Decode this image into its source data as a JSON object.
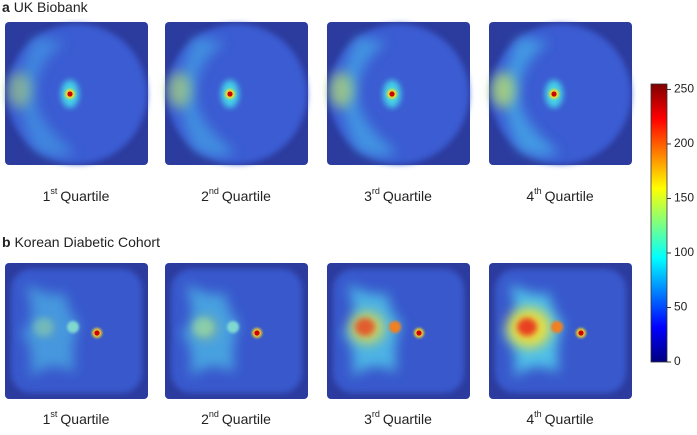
{
  "panels": [
    {
      "letter": "a",
      "title": "UK Biobank",
      "labels": [
        {
          "num": "1",
          "sup": "st",
          "text": "Quartile"
        },
        {
          "num": "2",
          "sup": "nd",
          "text": "Quartile"
        },
        {
          "num": "3",
          "sup": "rd",
          "text": "Quartile"
        },
        {
          "num": "4",
          "sup": "th",
          "text": "Quartile"
        }
      ]
    },
    {
      "letter": "b",
      "title": "Korean Diabetic Cohort",
      "labels": [
        {
          "num": "1",
          "sup": "st",
          "text": "Quartile"
        },
        {
          "num": "2",
          "sup": "nd",
          "text": "Quartile"
        },
        {
          "num": "3",
          "sup": "rd",
          "text": "Quartile"
        },
        {
          "num": "4",
          "sup": "th",
          "text": "Quartile"
        }
      ]
    }
  ],
  "colorbar": {
    "colormap": "jet",
    "lim": [
      0,
      255
    ],
    "ticks": [
      0,
      50,
      100,
      150,
      200,
      250
    ]
  }
}
